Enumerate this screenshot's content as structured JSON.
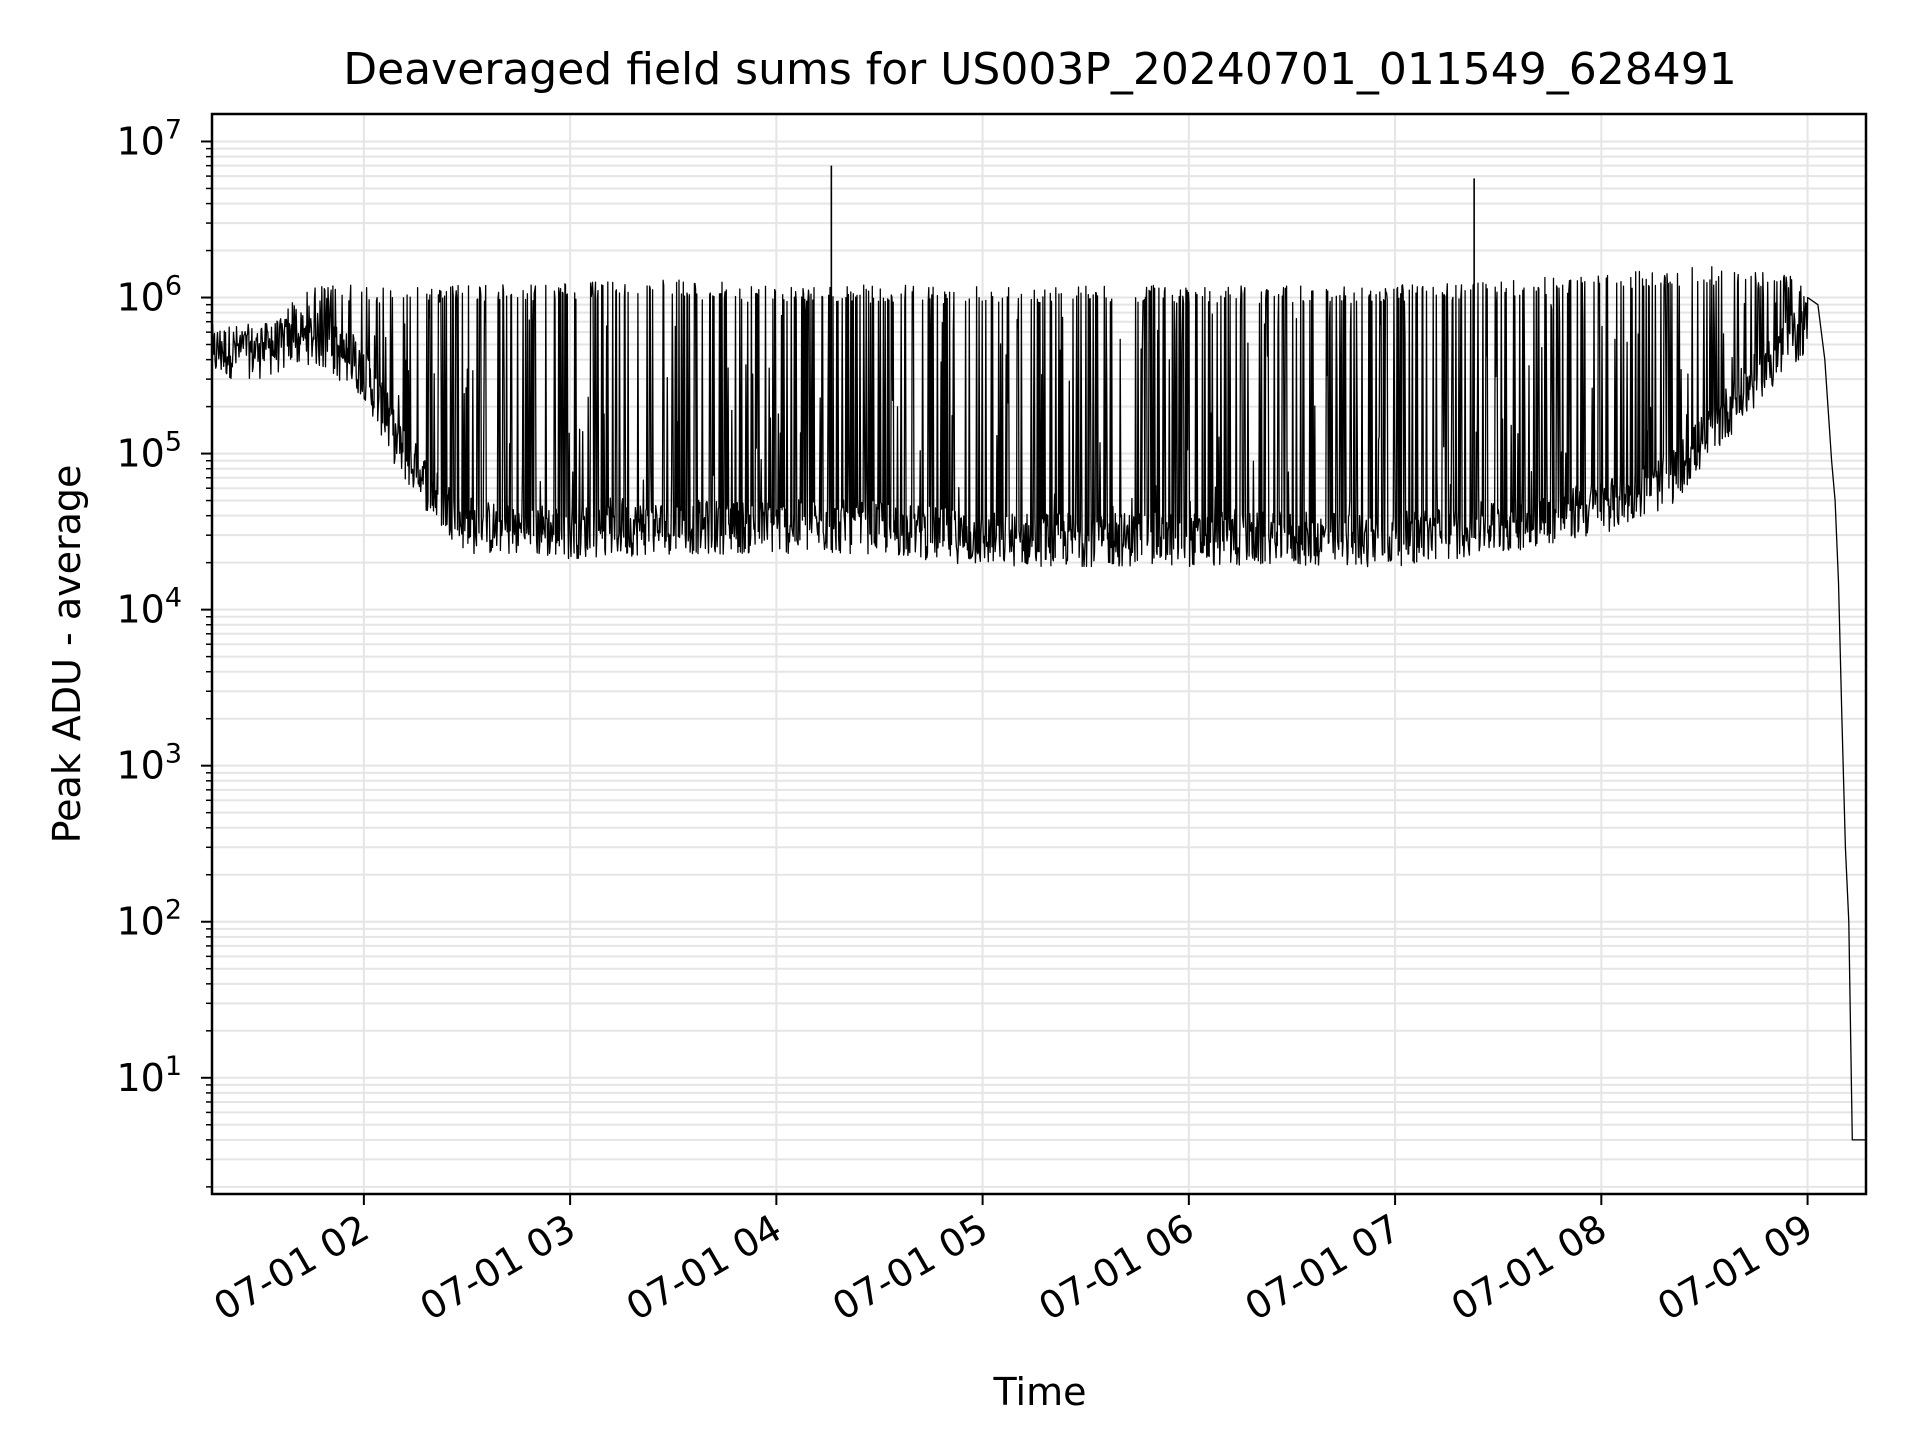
{
  "chart_data": {
    "type": "line",
    "title": "Deaveraged field sums for US003P_20240701_011549_628491",
    "xlabel": "Time",
    "ylabel": "Peak ADU - average",
    "xscale": "time",
    "yscale": "log",
    "xlim": [
      "2024-07-01 01:15:49",
      "2024-07-01 09:17:00"
    ],
    "ylim": [
      1.8,
      15000000
    ],
    "xticks": [
      {
        "value": "2024-07-01 02:00",
        "label": "07-01 02"
      },
      {
        "value": "2024-07-01 03:00",
        "label": "07-01 03"
      },
      {
        "value": "2024-07-01 04:00",
        "label": "07-01 04"
      },
      {
        "value": "2024-07-01 05:00",
        "label": "07-01 05"
      },
      {
        "value": "2024-07-01 06:00",
        "label": "07-01 06"
      },
      {
        "value": "2024-07-01 07:00",
        "label": "07-01 07"
      },
      {
        "value": "2024-07-01 08:00",
        "label": "07-01 08"
      },
      {
        "value": "2024-07-01 09:00",
        "label": "07-01 09"
      }
    ],
    "yticks": [
      {
        "value": 10,
        "base": "10",
        "exp": "1"
      },
      {
        "value": 100,
        "base": "10",
        "exp": "2"
      },
      {
        "value": 1000,
        "base": "10",
        "exp": "3"
      },
      {
        "value": 10000,
        "base": "10",
        "exp": "4"
      },
      {
        "value": 100000,
        "base": "10",
        "exp": "5"
      },
      {
        "value": 1000000,
        "base": "10",
        "exp": "6"
      },
      {
        "value": 10000000,
        "base": "10",
        "exp": "7"
      }
    ],
    "grid": true,
    "line_color": "#000000",
    "grid_color": "#e5e5e5",
    "series": [
      {
        "envelope_low": {
          "x": [
            "2024-07-01 01:15:49",
            "2024-07-01 01:30",
            "2024-07-01 01:45",
            "2024-07-01 02:00",
            "2024-07-01 02:10",
            "2024-07-01 02:20",
            "2024-07-01 02:30",
            "2024-07-01 03:00",
            "2024-07-01 03:30",
            "2024-07-01 04:00",
            "2024-07-01 04:30",
            "2024-07-01 05:00",
            "2024-07-01 05:30",
            "2024-07-01 06:00",
            "2024-07-01 06:30",
            "2024-07-01 07:00",
            "2024-07-01 07:30",
            "2024-07-01 08:00",
            "2024-07-01 08:20",
            "2024-07-01 08:40",
            "2024-07-01 09:00"
          ],
          "y": [
            400000,
            400000,
            500000,
            300000,
            100000,
            50000,
            30000,
            28000,
            30000,
            30000,
            30000,
            25000,
            25000,
            25000,
            25000,
            25000,
            30000,
            40000,
            60000,
            200000,
            600000
          ]
        },
        "envelope_high": {
          "x": [
            "2024-07-01 01:15:49",
            "2024-07-01 01:30",
            "2024-07-01 01:45",
            "2024-07-01 02:00",
            "2024-07-01 02:30",
            "2024-07-01 03:00",
            "2024-07-01 03:30",
            "2024-07-01 04:00",
            "2024-07-01 04:30",
            "2024-07-01 05:00",
            "2024-07-01 05:30",
            "2024-07-01 06:00",
            "2024-07-01 06:30",
            "2024-07-01 07:00",
            "2024-07-01 07:30",
            "2024-07-01 08:00",
            "2024-07-01 08:30",
            "2024-07-01 09:00"
          ],
          "y": [
            550000,
            650000,
            1200000,
            1200000,
            1200000,
            1250000,
            1300000,
            1200000,
            1200000,
            1200000,
            1200000,
            1200000,
            1200000,
            1200000,
            1300000,
            1400000,
            1600000,
            1400000
          ]
        },
        "spikes": [
          {
            "x": "2024-07-01 04:16",
            "y": 7000000
          },
          {
            "x": "2024-07-01 07:23",
            "y": 5800000
          }
        ],
        "tail": {
          "x": [
            "2024-07-01 09:00",
            "2024-07-01 09:03",
            "2024-07-01 09:05",
            "2024-07-01 09:07",
            "2024-07-01 09:08",
            "2024-07-01 09:09",
            "2024-07-01 09:10",
            "2024-07-01 09:11",
            "2024-07-01 09:12",
            "2024-07-01 09:13",
            "2024-07-01 09:14",
            "2024-07-01 09:15",
            "2024-07-01 09:17"
          ],
          "y": [
            1000000,
            900000,
            400000,
            90000,
            50000,
            15000,
            2000,
            300,
            100,
            4,
            4,
            4,
            4
          ]
        }
      }
    ]
  }
}
